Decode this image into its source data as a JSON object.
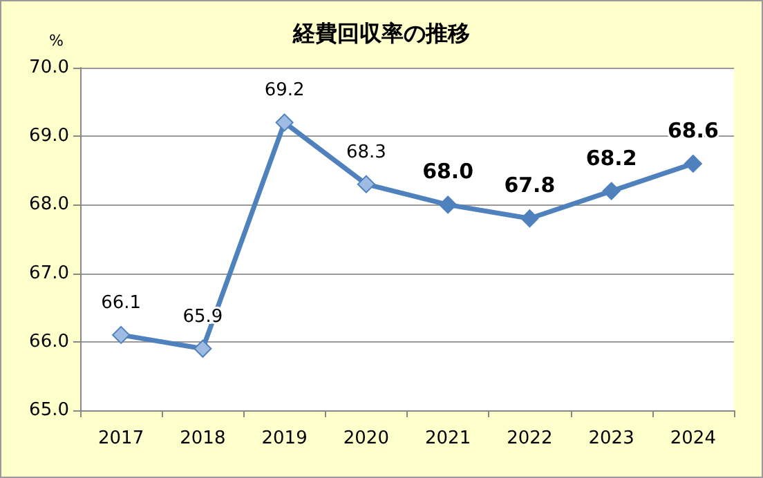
{
  "chart_data": {
    "type": "line",
    "title": "経費回収率の推移",
    "ylabel": "%",
    "categories": [
      "2017",
      "2018",
      "2019",
      "2020",
      "2021",
      "2022",
      "2023",
      "2024"
    ],
    "series": [
      {
        "color": "#4f81bd",
        "values": [
          66.1,
          65.9,
          69.2,
          68.3,
          68.0,
          67.8,
          68.2,
          68.6
        ],
        "colors": [
          "#9dbbe3",
          "#9dbbe3",
          "#9dbbe3",
          "#9dbbe3",
          "#4f81bd",
          "#4f81bd",
          "#4f81bd",
          "#4f81bd"
        ]
      }
    ],
    "value_labels": [
      "66.1",
      "65.9",
      "69.2",
      "68.3",
      "68.0",
      "67.8",
      "68.2",
      "68.6"
    ],
    "ylim": [
      65,
      70
    ],
    "yticks": [
      {
        "value": 65,
        "label": "65.0"
      },
      {
        "value": 66,
        "label": "66.0"
      },
      {
        "value": 67,
        "label": "67.0"
      },
      {
        "value": 68,
        "label": "68.0"
      },
      {
        "value": 69,
        "label": "69.0"
      },
      {
        "value": 70,
        "label": "70.0"
      }
    ],
    "grid": "y",
    "marker": "diamond",
    "line_style": "solid"
  }
}
